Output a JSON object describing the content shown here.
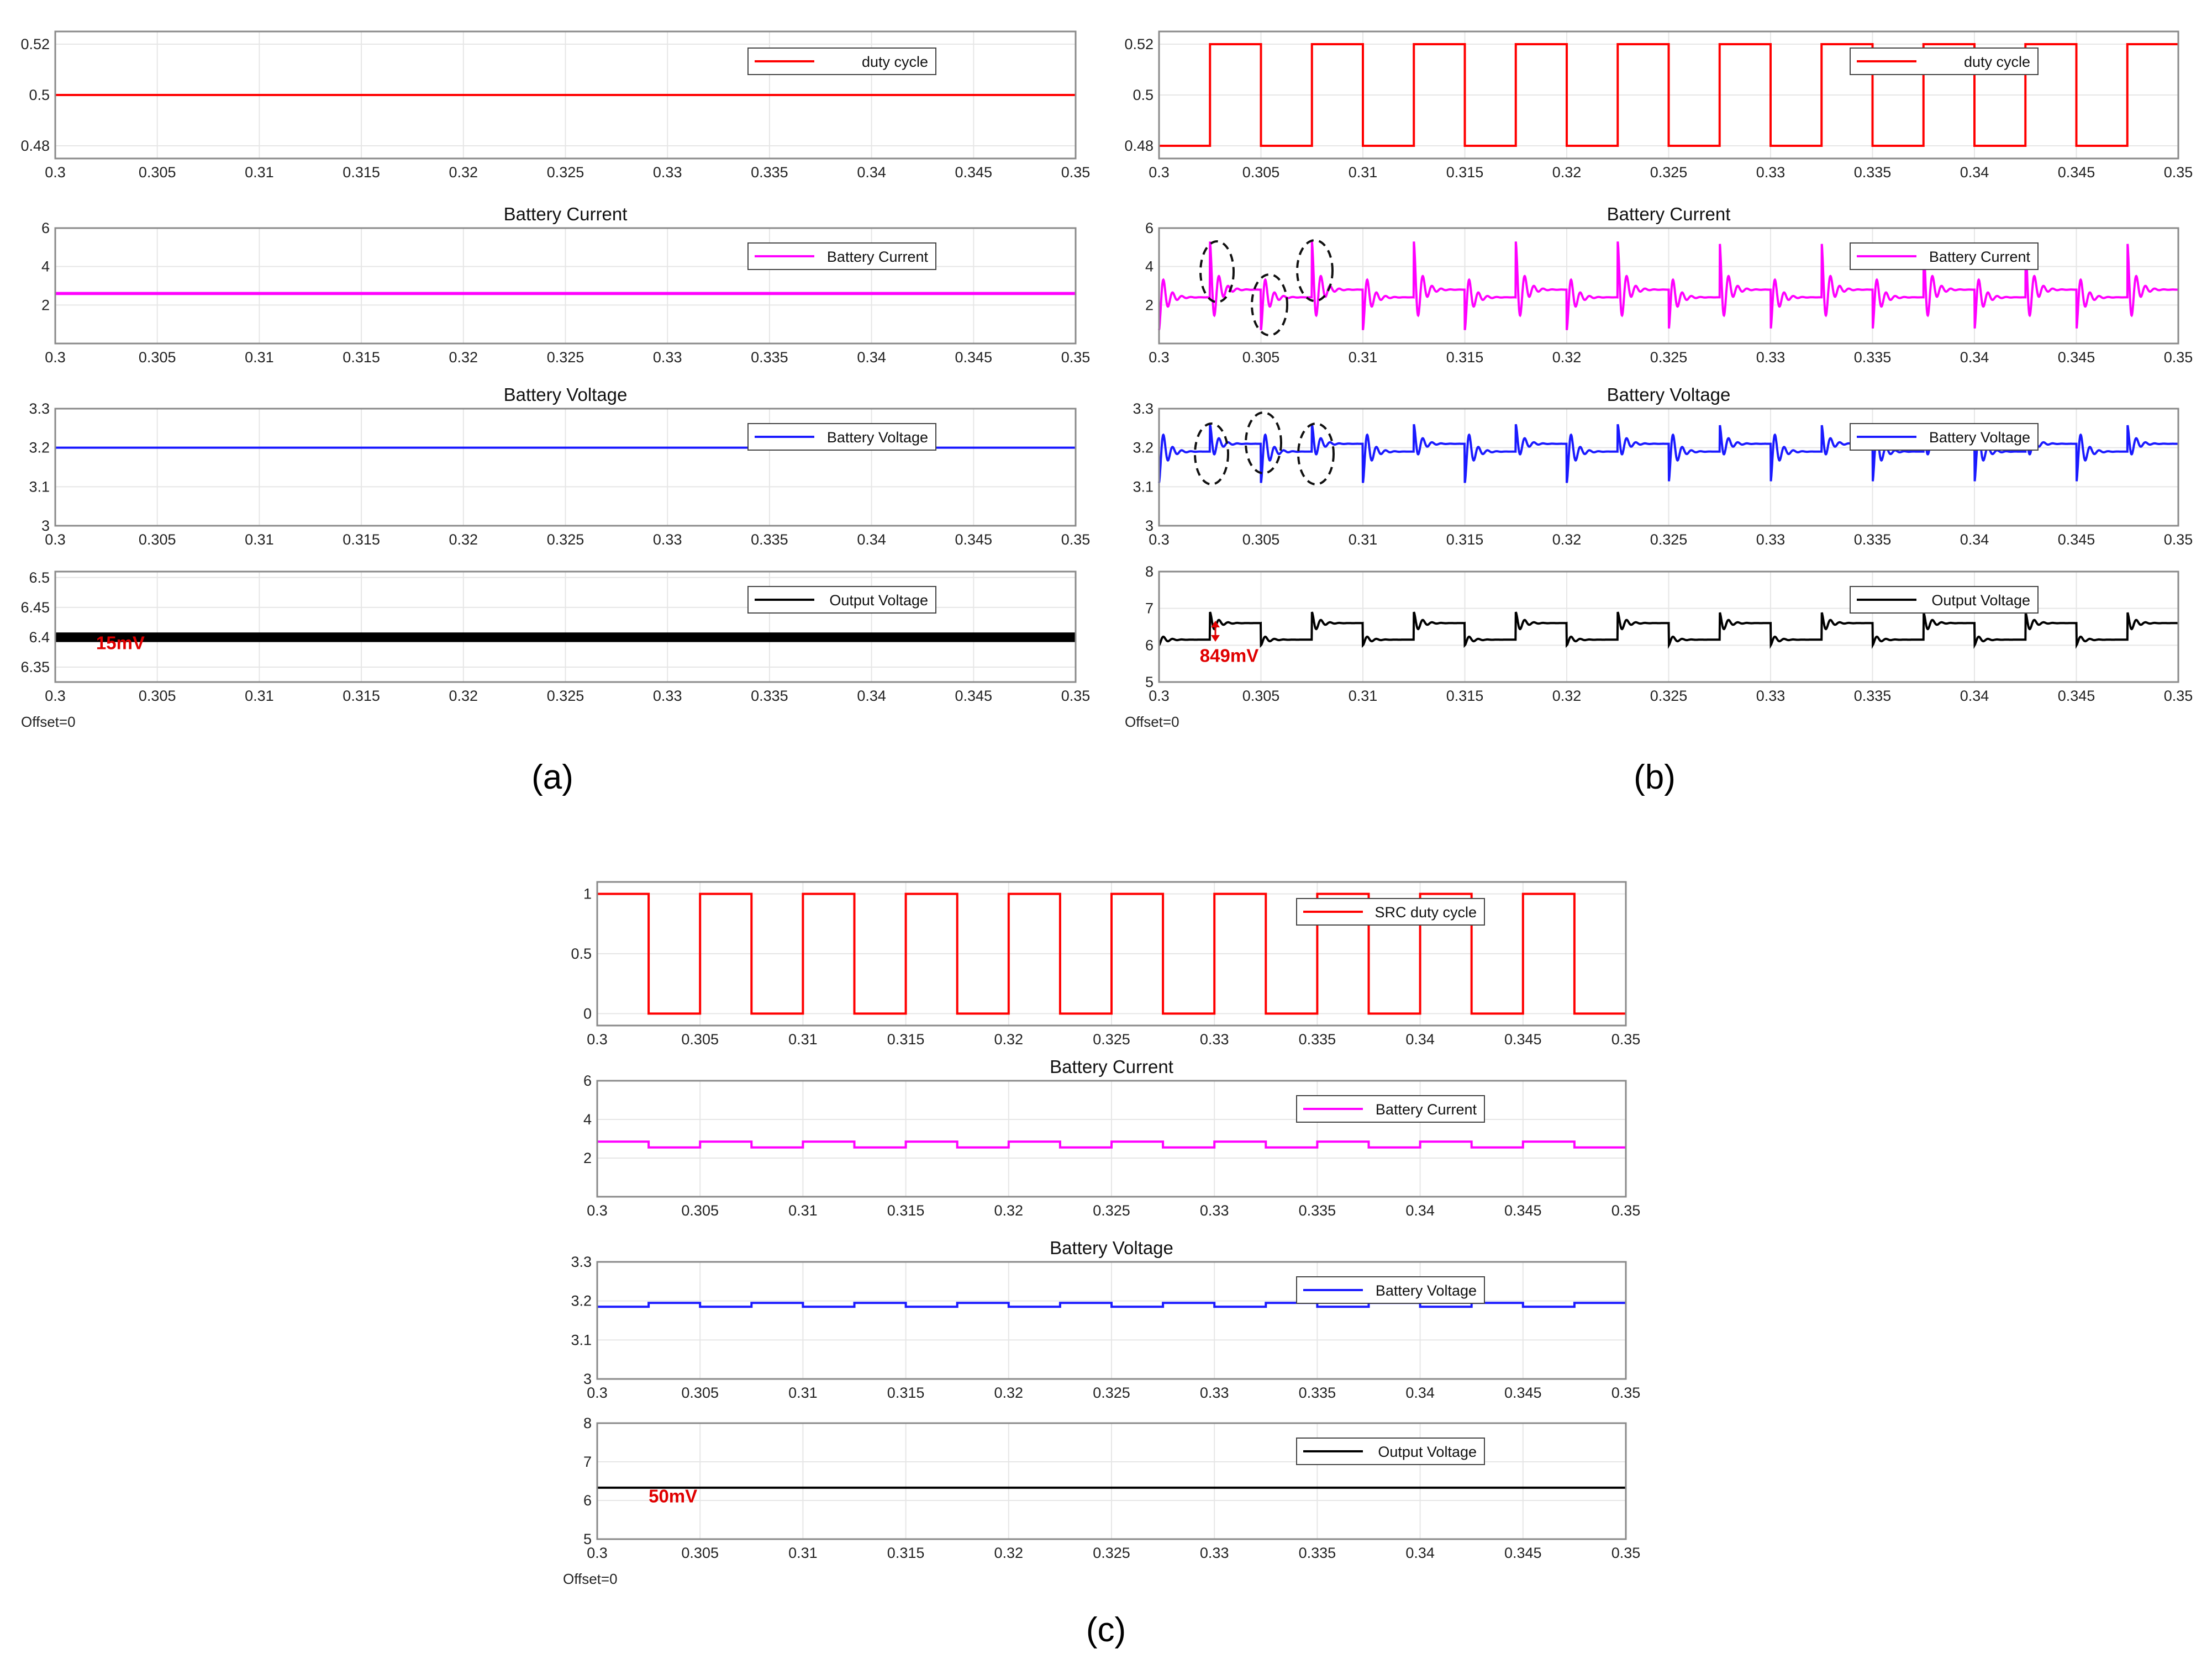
{
  "figure": {
    "captions": [
      "(a)",
      "(b)",
      "(c)"
    ]
  },
  "colors": {
    "duty": "#ff0000",
    "current": "#ff00ff",
    "voltage": "#1a1aff",
    "output": "#000000",
    "annotation": "#e00000",
    "grid": "#e6e6e6",
    "frame": "#8a8a8a"
  },
  "chart_data": [
    {
      "type": "line",
      "panel": "a",
      "row": 0,
      "title": "",
      "legend": "duty cycle",
      "series_color": "duty",
      "xlim": [
        0.3,
        0.35
      ],
      "ylim": [
        0.475,
        0.525
      ],
      "yticks": [
        0.48,
        0.5,
        0.52
      ],
      "ytick_labels": [
        "0.48",
        "0.5",
        "0.52"
      ],
      "waveform": {
        "kind": "constant",
        "value": 0.5
      },
      "annotations": [],
      "offset_label": ""
    },
    {
      "type": "line",
      "panel": "a",
      "row": 1,
      "title": "Battery Current",
      "legend": "Battery Current",
      "series_color": "current",
      "xlim": [
        0.3,
        0.35
      ],
      "ylim": [
        0,
        6
      ],
      "yticks": [
        2,
        4,
        6
      ],
      "ytick_labels": [
        "2",
        "4",
        "6"
      ],
      "waveform": {
        "kind": "constant",
        "value": 2.6,
        "ripple": 0.08
      },
      "annotations": [],
      "offset_label": ""
    },
    {
      "type": "line",
      "panel": "a",
      "row": 2,
      "title": "Battery Voltage",
      "legend": "Battery Voltage",
      "series_color": "voltage",
      "xlim": [
        0.3,
        0.35
      ],
      "ylim": [
        3.0,
        3.3
      ],
      "yticks": [
        3,
        3.1,
        3.2,
        3.3
      ],
      "ytick_labels": [
        "3",
        "3.1",
        "3.2",
        "3.3"
      ],
      "waveform": {
        "kind": "constant",
        "value": 3.2
      },
      "annotations": [],
      "offset_label": ""
    },
    {
      "type": "line",
      "panel": "a",
      "row": 3,
      "title": "",
      "legend": "Output Voltage",
      "series_color": "output",
      "xlim": [
        0.3,
        0.35
      ],
      "ylim": [
        6.325,
        6.51
      ],
      "yticks": [
        6.35,
        6.4,
        6.45,
        6.5
      ],
      "ytick_labels": [
        "6.35",
        "6.4",
        "6.45",
        "6.5"
      ],
      "waveform": {
        "kind": "constant",
        "value": 6.4,
        "ripple": 0.008
      },
      "annotations": [
        {
          "text": "15mV",
          "x": 0.302,
          "y": 6.38
        }
      ],
      "offset_label": "Offset=0"
    },
    {
      "type": "line",
      "panel": "b",
      "row": 0,
      "title": "",
      "legend": "duty cycle",
      "series_color": "duty",
      "xlim": [
        0.3,
        0.35
      ],
      "ylim": [
        0.475,
        0.525
      ],
      "yticks": [
        0.48,
        0.5,
        0.52
      ],
      "ytick_labels": [
        "0.48",
        "0.5",
        "0.52"
      ],
      "waveform": {
        "kind": "square",
        "high": 0.52,
        "low": 0.48,
        "period": 0.005,
        "high_start": 0.0025
      },
      "annotations": [],
      "offset_label": ""
    },
    {
      "type": "line",
      "panel": "b",
      "row": 1,
      "title": "Battery Current",
      "legend": "Battery Current",
      "series_color": "current",
      "xlim": [
        0.3,
        0.35
      ],
      "ylim": [
        0,
        6
      ],
      "yticks": [
        2,
        4,
        6
      ],
      "ytick_labels": [
        "2",
        "4",
        "6"
      ],
      "waveform": {
        "kind": "ringing",
        "high": 2.8,
        "low": 2.4,
        "period": 0.005,
        "high_start": 0.0025,
        "spike_up": 5.3,
        "spike_down": 0.7
      },
      "annotations": [],
      "offset_label": ""
    },
    {
      "type": "line",
      "panel": "b",
      "row": 2,
      "title": "Battery Voltage",
      "legend": "Battery Voltage",
      "series_color": "voltage",
      "xlim": [
        0.3,
        0.35
      ],
      "ylim": [
        3.0,
        3.3
      ],
      "yticks": [
        3,
        3.1,
        3.2,
        3.3
      ],
      "ytick_labels": [
        "3",
        "3.1",
        "3.2",
        "3.3"
      ],
      "waveform": {
        "kind": "ringing",
        "high": 3.21,
        "low": 3.19,
        "period": 0.005,
        "high_start": 0.0025,
        "spike_up": 3.26,
        "spike_down": 3.11
      },
      "annotations": [],
      "offset_label": ""
    },
    {
      "type": "line",
      "panel": "b",
      "row": 3,
      "title": "",
      "legend": "Output Voltage",
      "series_color": "output",
      "xlim": [
        0.3,
        0.35
      ],
      "ylim": [
        5,
        8
      ],
      "yticks": [
        5,
        6,
        7,
        8
      ],
      "ytick_labels": [
        "5",
        "6",
        "7",
        "8"
      ],
      "waveform": {
        "kind": "ringing",
        "high": 6.6,
        "low": 6.15,
        "period": 0.005,
        "high_start": 0.0025,
        "spike_up": 6.9,
        "spike_down": 6.0
      },
      "annotations": [
        {
          "text": "849mV",
          "x": 0.302,
          "y": 5.55
        }
      ],
      "offset_label": "Offset=0"
    },
    {
      "type": "line",
      "panel": "c",
      "row": 0,
      "title": "",
      "legend": "SRC duty cycle",
      "series_color": "duty",
      "xlim": [
        0.3,
        0.35
      ],
      "ylim": [
        -0.1,
        1.1
      ],
      "yticks": [
        0,
        0.5,
        1
      ],
      "ytick_labels": [
        "0",
        "0.5",
        "1"
      ],
      "waveform": {
        "kind": "square",
        "high": 1,
        "low": 0,
        "period": 0.005,
        "high_start": 0.0
      },
      "annotations": [],
      "offset_label": ""
    },
    {
      "type": "line",
      "panel": "c",
      "row": 1,
      "title": "Battery Current",
      "legend": "Battery Current",
      "series_color": "current",
      "xlim": [
        0.3,
        0.35
      ],
      "ylim": [
        0,
        6
      ],
      "yticks": [
        2,
        4,
        6
      ],
      "ytick_labels": [
        "2",
        "4",
        "6"
      ],
      "waveform": {
        "kind": "square",
        "high": 2.85,
        "low": 2.55,
        "period": 0.005,
        "high_start": 0.0,
        "ripple": 0.07
      },
      "annotations": [],
      "offset_label": ""
    },
    {
      "type": "line",
      "panel": "c",
      "row": 2,
      "title": "Battery Voltage",
      "legend": "Battery Voltage",
      "series_color": "voltage",
      "xlim": [
        0.3,
        0.35
      ],
      "ylim": [
        3.0,
        3.3
      ],
      "yticks": [
        3,
        3.1,
        3.2,
        3.3
      ],
      "ytick_labels": [
        "3",
        "3.1",
        "3.2",
        "3.3"
      ],
      "waveform": {
        "kind": "square",
        "high": 3.195,
        "low": 3.185,
        "period": 0.005,
        "high_start": 0.0025
      },
      "annotations": [],
      "offset_label": ""
    },
    {
      "type": "line",
      "panel": "c",
      "row": 3,
      "title": "",
      "legend": "Output Voltage",
      "series_color": "output",
      "xlim": [
        0.3,
        0.35
      ],
      "ylim": [
        5,
        8
      ],
      "yticks": [
        5,
        6,
        7,
        8
      ],
      "ytick_labels": [
        "5",
        "6",
        "7",
        "8"
      ],
      "waveform": {
        "kind": "constant",
        "value": 6.33
      },
      "annotations": [
        {
          "text": "50mV",
          "x": 0.3025,
          "y": 5.95
        }
      ],
      "offset_label": "Offset=0"
    }
  ],
  "shared": {
    "xticks": [
      0.3,
      0.305,
      0.31,
      0.315,
      0.32,
      0.325,
      0.33,
      0.335,
      0.34,
      0.345,
      0.35
    ],
    "xtick_labels": [
      "0.3",
      "0.305",
      "0.31",
      "0.315",
      "0.32",
      "0.325",
      "0.33",
      "0.335",
      "0.34",
      "0.345",
      "0.35"
    ]
  }
}
